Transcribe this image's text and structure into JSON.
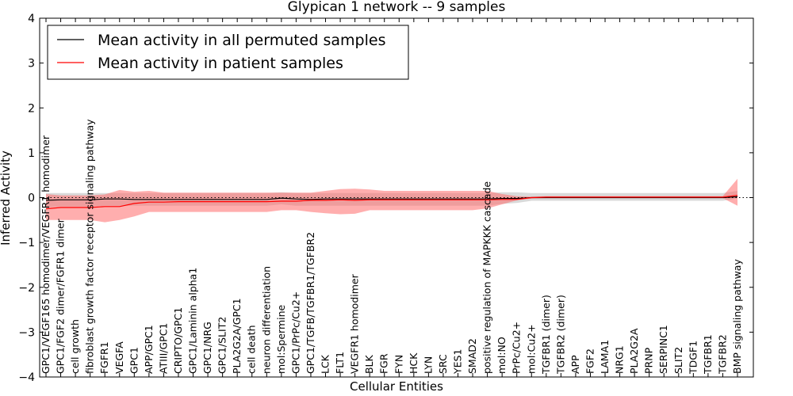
{
  "chart_data": {
    "type": "line",
    "title": "Glypican 1 network -- 9 samples",
    "xlabel": "Cellular Entities",
    "ylabel": "Inferred Activity",
    "ylim": [
      -4,
      4
    ],
    "yticks": [
      -4,
      -3,
      -2,
      -1,
      0,
      1,
      2,
      3,
      4
    ],
    "ytick_labels": [
      "−4",
      "−3",
      "−2",
      "−1",
      "0",
      "1",
      "2",
      "3",
      "4"
    ],
    "grid": false,
    "legend_position": "top-left",
    "colors": {
      "permuted": "#000000",
      "patient": "#ff0000",
      "permuted_band": "#b4b4b4",
      "patient_band": "#ff6b6b"
    },
    "categories": [
      "GPC1/VEGF165 homodimer/VEGFR1 homodimer",
      "GPC1/FGF2 dimer/FGFR1 dimer",
      "cell growth",
      "fibroblast growth factor receptor signaling pathway",
      "FGFR1",
      "VEGFA",
      "GPC1",
      "APP/GPC1",
      "ATIII/GPC1",
      "CRIPTO/GPC1",
      "GPC1/Laminin alpha1",
      "GPC1/NRG",
      "GPC1/SLIT2",
      "PLA2G2A/GPC1",
      "cell death",
      "neuron differentiation",
      "mol:Spermine",
      "GPC1/PrPc/Cu2+",
      "GPC1/TGFB/TGFBR1/TGFBR2",
      "LCK",
      "FLT1",
      "VEGFR1 homodimer",
      "BLK",
      "FGR",
      "FYN",
      "HCK",
      "LYN",
      "SRC",
      "YES1",
      "SMAD2",
      "positive regulation of MAPKKK cascade",
      "mol:NO",
      "PrPc/Cu2+",
      "mol:Cu2+",
      "TGFBR1 (dimer)",
      "TGFBR2 (dimer)",
      "APP",
      "FGF2",
      "LAMA1",
      "NRG1",
      "PLA2G2A",
      "PRNP",
      "SERPINC1",
      "SLIT2",
      "TDGF1",
      "TGFBR1",
      "TGFBR2",
      "BMP signaling pathway"
    ],
    "series": [
      {
        "name": "Mean activity in all permuted samples",
        "values": [
          -0.06,
          -0.05,
          -0.05,
          -0.05,
          -0.03,
          -0.03,
          -0.04,
          -0.04,
          -0.04,
          -0.04,
          -0.04,
          -0.04,
          -0.04,
          -0.04,
          -0.04,
          -0.04,
          -0.01,
          -0.03,
          -0.04,
          -0.03,
          -0.03,
          -0.03,
          -0.03,
          -0.03,
          -0.03,
          -0.03,
          -0.03,
          -0.03,
          -0.03,
          -0.03,
          -0.03,
          -0.02,
          -0.02,
          0.0,
          0.0,
          0.0,
          0.0,
          0.0,
          0.0,
          0.0,
          0.0,
          0.0,
          0.0,
          0.0,
          0.0,
          0.0,
          0.0,
          0.02
        ],
        "band_upper": [
          0.1,
          0.1,
          0.1,
          0.1,
          0.1,
          0.1,
          0.1,
          0.1,
          0.1,
          0.1,
          0.1,
          0.1,
          0.1,
          0.1,
          0.1,
          0.1,
          0.12,
          0.1,
          0.1,
          0.1,
          0.1,
          0.1,
          0.1,
          0.1,
          0.1,
          0.1,
          0.1,
          0.1,
          0.1,
          0.1,
          0.1,
          0.12,
          0.12,
          0.1,
          0.1,
          0.1,
          0.1,
          0.1,
          0.1,
          0.1,
          0.1,
          0.1,
          0.1,
          0.1,
          0.1,
          0.1,
          0.1,
          0.15
        ],
        "band_lower": [
          -0.22,
          -0.2,
          -0.2,
          -0.2,
          -0.18,
          -0.18,
          -0.18,
          -0.18,
          -0.18,
          -0.18,
          -0.18,
          -0.18,
          -0.18,
          -0.18,
          -0.18,
          -0.18,
          -0.15,
          -0.18,
          -0.18,
          -0.18,
          -0.18,
          -0.18,
          -0.18,
          -0.18,
          -0.18,
          -0.18,
          -0.18,
          -0.18,
          -0.18,
          -0.18,
          -0.18,
          -0.14,
          -0.12,
          -0.07,
          -0.07,
          -0.07,
          -0.07,
          -0.07,
          -0.07,
          -0.07,
          -0.07,
          -0.07,
          -0.07,
          -0.07,
          -0.07,
          -0.07,
          -0.07,
          -0.02
        ]
      },
      {
        "name": "Mean activity in patient samples",
        "values": [
          -0.25,
          -0.22,
          -0.22,
          -0.22,
          -0.2,
          -0.2,
          -0.13,
          -0.1,
          -0.1,
          -0.09,
          -0.09,
          -0.09,
          -0.09,
          -0.09,
          -0.09,
          -0.09,
          -0.08,
          -0.08,
          -0.06,
          -0.06,
          -0.05,
          -0.06,
          -0.05,
          -0.05,
          -0.05,
          -0.05,
          -0.05,
          -0.05,
          -0.05,
          -0.05,
          -0.05,
          -0.04,
          -0.04,
          0.0,
          0.01,
          0.01,
          0.01,
          0.01,
          0.01,
          0.01,
          0.01,
          0.01,
          0.01,
          0.01,
          0.01,
          0.01,
          0.01,
          0.05
        ],
        "band_upper": [
          0.08,
          0.05,
          0.05,
          0.05,
          0.07,
          0.17,
          0.13,
          0.15,
          0.11,
          0.11,
          0.11,
          0.11,
          0.11,
          0.11,
          0.11,
          0.11,
          0.11,
          0.11,
          0.11,
          0.15,
          0.19,
          0.2,
          0.18,
          0.15,
          0.15,
          0.15,
          0.15,
          0.15,
          0.15,
          0.15,
          0.15,
          0.08,
          0.03,
          0.02,
          0.03,
          0.03,
          0.03,
          0.03,
          0.03,
          0.03,
          0.03,
          0.03,
          0.03,
          0.03,
          0.03,
          0.03,
          0.03,
          0.42
        ],
        "band_lower": [
          -0.5,
          -0.5,
          -0.5,
          -0.5,
          -0.55,
          -0.5,
          -0.42,
          -0.32,
          -0.32,
          -0.32,
          -0.32,
          -0.32,
          -0.32,
          -0.32,
          -0.32,
          -0.32,
          -0.28,
          -0.28,
          -0.32,
          -0.35,
          -0.37,
          -0.36,
          -0.28,
          -0.28,
          -0.28,
          -0.28,
          -0.28,
          -0.28,
          -0.28,
          -0.28,
          -0.24,
          -0.15,
          -0.06,
          -0.02,
          -0.01,
          -0.01,
          -0.01,
          -0.01,
          -0.01,
          -0.01,
          -0.01,
          -0.01,
          -0.01,
          -0.01,
          -0.01,
          -0.01,
          -0.01,
          -0.18
        ]
      }
    ]
  }
}
